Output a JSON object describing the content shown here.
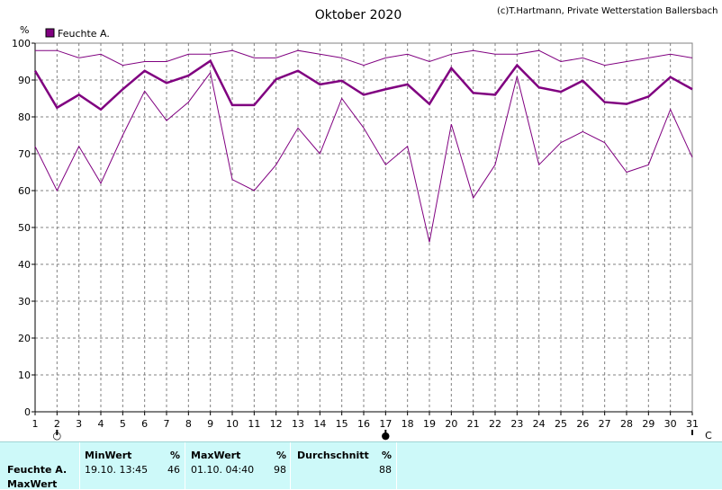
{
  "chart_data": {
    "type": "line",
    "title": "Oktober 2020",
    "copyright": "(c)T.Hartmann, Private Wetterstation Ballersbach",
    "ylabel": "%",
    "ylim": [
      0,
      100
    ],
    "yticks": [
      0,
      10,
      20,
      30,
      40,
      50,
      60,
      70,
      80,
      90,
      100
    ],
    "x": [
      1,
      2,
      3,
      4,
      5,
      6,
      7,
      8,
      9,
      10,
      11,
      12,
      13,
      14,
      15,
      16,
      17,
      18,
      19,
      20,
      21,
      22,
      23,
      24,
      25,
      26,
      27,
      28,
      29,
      30,
      31
    ],
    "xlim": [
      1,
      31
    ],
    "color": "#800080",
    "legend": {
      "label": "Feuchte A.",
      "placement": "top-left"
    },
    "grid": true,
    "moon_phases": [
      {
        "day": 2,
        "symbol": "○"
      },
      {
        "day": 17,
        "symbol": "●"
      },
      {
        "day": 31,
        "symbol": "C"
      }
    ],
    "series": [
      {
        "role": "max",
        "values": [
          98,
          98,
          96,
          97,
          94,
          95,
          95,
          97,
          97,
          98,
          96,
          96,
          98,
          97,
          96,
          94,
          96,
          97,
          95,
          97,
          98,
          97,
          97,
          98,
          95,
          96,
          94,
          95,
          96,
          97,
          96
        ]
      },
      {
        "role": "mean",
        "values": [
          92.5,
          82.5,
          86,
          82,
          87.5,
          92.5,
          89.2,
          91.2,
          95.2,
          83.2,
          83.2,
          90.2,
          92.5,
          88.8,
          89.8,
          86,
          87.5,
          88.8,
          83.5,
          93.2,
          86.5,
          86,
          94,
          88,
          86.8,
          89.8,
          84,
          83.5,
          85.5,
          90.8,
          87.5
        ]
      },
      {
        "role": "min",
        "values": [
          72,
          60,
          72,
          62,
          75,
          87,
          79,
          84,
          92,
          63,
          60,
          67,
          77,
          70,
          85,
          77,
          67,
          72,
          46,
          78,
          58,
          67,
          91,
          67,
          73,
          76,
          73,
          65,
          67,
          82,
          69
        ]
      }
    ]
  },
  "stats": {
    "row_label": "Feuchte A.",
    "row_label2": "MaxWert",
    "min": {
      "header": "MinWert",
      "unit": "%",
      "time": "19.10.  13:45",
      "value": "46"
    },
    "max": {
      "header": "MaxWert",
      "unit": "%",
      "time": "01.10.  04:40",
      "value": "98"
    },
    "avg": {
      "header": "Durchschnitt",
      "unit": "%",
      "value": "88"
    }
  }
}
